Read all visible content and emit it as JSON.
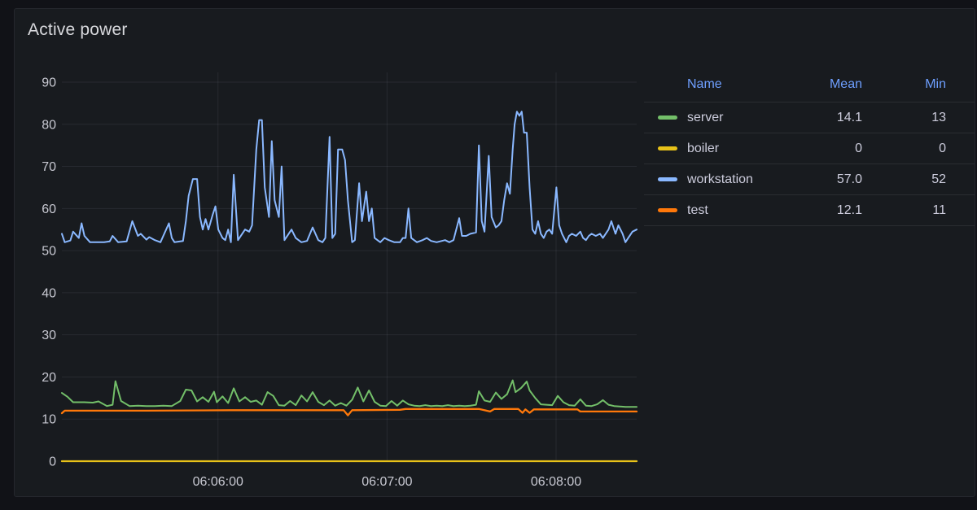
{
  "panel": {
    "title": "Active power"
  },
  "colors": {
    "page_background": "#111217",
    "panel_background": "#181B1F",
    "panel_border": "#25272D",
    "text": "#CCCCDC",
    "axis_text": "#C8C9D2",
    "header_link_blue": "#6E9FFF",
    "grid": "rgba(204,204,220,0.09)"
  },
  "legend": {
    "headers": [
      "Name",
      "Mean",
      "Min"
    ],
    "rows": [
      {
        "name": "server",
        "mean": "14.1",
        "min": "13",
        "color": "#73BF69"
      },
      {
        "name": "boiler",
        "mean": "0",
        "min": "0",
        "color": "#E8C219"
      },
      {
        "name": "workstation",
        "mean": "57.0",
        "min": "52",
        "color": "#8AB8FF"
      },
      {
        "name": "test",
        "mean": "12.1",
        "min": "11",
        "color": "#FF780A"
      }
    ]
  },
  "chart_data": {
    "type": "line",
    "title": "Active power",
    "xlabel": "",
    "ylabel": "",
    "grid": true,
    "legend_position": "right-table",
    "ylim": [
      0,
      93
    ],
    "y_ticks": [
      0,
      10,
      20,
      30,
      40,
      50,
      60,
      70,
      80,
      90
    ],
    "t_max_seconds": 204,
    "x_ticks": [
      {
        "t": 55.4,
        "label": "06:06:00"
      },
      {
        "t": 115.4,
        "label": "06:07:00"
      },
      {
        "t": 175.4,
        "label": "06:08:00"
      }
    ],
    "series": [
      {
        "name": "server",
        "color": "#73BF69",
        "width": 2,
        "points": [
          [
            0,
            16.2
          ],
          [
            2,
            15.3
          ],
          [
            4,
            14
          ],
          [
            8,
            14
          ],
          [
            11,
            13.9
          ],
          [
            13,
            14.2
          ],
          [
            16,
            13.1
          ],
          [
            18,
            13.4
          ],
          [
            19,
            19
          ],
          [
            21,
            14.3
          ],
          [
            24,
            13.1
          ],
          [
            27,
            13.2
          ],
          [
            30,
            13.1
          ],
          [
            33,
            13.1
          ],
          [
            36,
            13.2
          ],
          [
            39,
            13.1
          ],
          [
            42,
            14.3
          ],
          [
            44,
            17
          ],
          [
            46,
            16.8
          ],
          [
            48,
            14.2
          ],
          [
            50,
            15.2
          ],
          [
            52,
            14.1
          ],
          [
            54,
            16.5
          ],
          [
            55,
            14
          ],
          [
            57,
            15.4
          ],
          [
            59,
            13.8
          ],
          [
            61,
            17.3
          ],
          [
            63,
            14.2
          ],
          [
            65,
            15.2
          ],
          [
            67,
            14.1
          ],
          [
            69,
            14.4
          ],
          [
            71,
            13.4
          ],
          [
            73,
            16.4
          ],
          [
            75,
            15.5
          ],
          [
            77,
            13.3
          ],
          [
            79,
            13.2
          ],
          [
            81,
            14.3
          ],
          [
            83,
            13.3
          ],
          [
            85,
            15.6
          ],
          [
            87,
            14.2
          ],
          [
            89,
            16.4
          ],
          [
            91,
            14.1
          ],
          [
            93,
            13.3
          ],
          [
            95,
            14.4
          ],
          [
            97,
            13.2
          ],
          [
            99,
            13.8
          ],
          [
            101,
            13.2
          ],
          [
            103,
            14.6
          ],
          [
            105,
            17.5
          ],
          [
            107,
            14.2
          ],
          [
            109,
            16.8
          ],
          [
            111,
            14.1
          ],
          [
            113,
            13.2
          ],
          [
            115,
            13.1
          ],
          [
            117,
            14.3
          ],
          [
            119,
            13.2
          ],
          [
            121,
            14.4
          ],
          [
            123,
            13.5
          ],
          [
            125,
            13.2
          ],
          [
            127,
            13.1
          ],
          [
            129,
            13.3
          ],
          [
            131,
            13.1
          ],
          [
            133,
            13.2
          ],
          [
            135,
            13.1
          ],
          [
            137,
            13.3
          ],
          [
            139,
            13.1
          ],
          [
            141,
            13.2
          ],
          [
            143,
            13.1
          ],
          [
            145,
            13.2
          ],
          [
            147,
            13.4
          ],
          [
            148,
            16.6
          ],
          [
            150,
            14.4
          ],
          [
            152,
            14.1
          ],
          [
            154,
            16.3
          ],
          [
            156,
            14.8
          ],
          [
            158,
            15.9
          ],
          [
            160,
            19.2
          ],
          [
            161,
            16.4
          ],
          [
            163,
            17.4
          ],
          [
            165,
            18.9
          ],
          [
            166,
            16.8
          ],
          [
            168,
            15
          ],
          [
            170,
            13.5
          ],
          [
            172,
            13.4
          ],
          [
            174,
            13.3
          ],
          [
            176,
            15.5
          ],
          [
            178,
            14
          ],
          [
            180,
            13.3
          ],
          [
            182,
            13.2
          ],
          [
            184,
            14.7
          ],
          [
            186,
            13.2
          ],
          [
            188,
            13.1
          ],
          [
            190,
            13.5
          ],
          [
            192,
            14.5
          ],
          [
            194,
            13.4
          ],
          [
            196,
            13.1
          ],
          [
            198,
            13
          ],
          [
            200,
            12.9
          ],
          [
            202,
            12.9
          ],
          [
            204,
            12.9
          ]
        ]
      },
      {
        "name": "boiler",
        "color": "#E8C219",
        "width": 2.3,
        "points": [
          [
            0,
            0
          ],
          [
            204,
            0
          ]
        ]
      },
      {
        "name": "workstation",
        "color": "#8AB8FF",
        "width": 2,
        "points": [
          [
            0,
            54
          ],
          [
            1,
            52
          ],
          [
            3,
            52.4
          ],
          [
            4,
            54.5
          ],
          [
            6,
            53
          ],
          [
            7,
            56.5
          ],
          [
            8,
            53.5
          ],
          [
            10,
            52
          ],
          [
            15,
            52
          ],
          [
            17,
            52.2
          ],
          [
            18,
            53.5
          ],
          [
            20,
            52
          ],
          [
            23,
            52.2
          ],
          [
            25,
            57
          ],
          [
            27,
            53.5
          ],
          [
            28,
            54
          ],
          [
            30,
            52.6
          ],
          [
            31,
            53.2
          ],
          [
            33,
            52.5
          ],
          [
            35,
            52
          ],
          [
            38,
            56.5
          ],
          [
            39,
            53
          ],
          [
            40,
            52
          ],
          [
            43,
            52.3
          ],
          [
            44,
            57
          ],
          [
            45,
            63
          ],
          [
            46.5,
            67
          ],
          [
            48,
            67
          ],
          [
            49,
            58
          ],
          [
            50,
            55
          ],
          [
            51,
            57.5
          ],
          [
            52,
            55
          ],
          [
            53.5,
            58.5
          ],
          [
            54.5,
            60.5
          ],
          [
            55.5,
            55
          ],
          [
            57,
            53
          ],
          [
            58,
            52.5
          ],
          [
            59,
            55
          ],
          [
            60,
            52
          ],
          [
            61,
            68
          ],
          [
            62.5,
            52.5
          ],
          [
            64,
            54
          ],
          [
            65,
            55
          ],
          [
            66.5,
            54.5
          ],
          [
            67.5,
            56
          ],
          [
            69,
            74
          ],
          [
            70,
            81
          ],
          [
            71,
            81
          ],
          [
            72,
            65
          ],
          [
            73.5,
            58
          ],
          [
            74.5,
            76
          ],
          [
            75.5,
            62
          ],
          [
            77,
            58
          ],
          [
            78,
            70
          ],
          [
            79,
            52.5
          ],
          [
            80.5,
            54
          ],
          [
            81.5,
            55
          ],
          [
            83,
            53
          ],
          [
            85,
            52
          ],
          [
            87,
            52.3
          ],
          [
            89,
            55.5
          ],
          [
            91,
            52.5
          ],
          [
            92.5,
            52
          ],
          [
            93.5,
            53
          ],
          [
            95,
            77
          ],
          [
            96,
            53
          ],
          [
            97,
            54
          ],
          [
            98,
            74
          ],
          [
            99.5,
            74
          ],
          [
            100.5,
            71.5
          ],
          [
            101.5,
            62
          ],
          [
            103,
            52
          ],
          [
            104,
            52.5
          ],
          [
            105.5,
            66
          ],
          [
            106.5,
            57
          ],
          [
            108,
            64
          ],
          [
            109,
            57
          ],
          [
            110,
            60
          ],
          [
            111,
            53
          ],
          [
            113,
            52
          ],
          [
            114.5,
            53
          ],
          [
            116,
            52.5
          ],
          [
            118,
            52
          ],
          [
            120,
            52
          ],
          [
            121,
            53
          ],
          [
            122,
            53
          ],
          [
            123,
            60
          ],
          [
            124,
            53
          ],
          [
            126,
            52
          ],
          [
            128,
            52.5
          ],
          [
            129.5,
            53
          ],
          [
            131,
            52.3
          ],
          [
            133,
            52
          ],
          [
            136,
            52.5
          ],
          [
            137.5,
            52
          ],
          [
            139,
            52.5
          ],
          [
            141,
            57.7
          ],
          [
            142,
            53.5
          ],
          [
            143.5,
            53.5
          ],
          [
            145,
            54
          ],
          [
            147,
            54.3
          ],
          [
            148,
            75
          ],
          [
            149,
            57
          ],
          [
            150,
            54.5
          ],
          [
            151.5,
            72.5
          ],
          [
            152.5,
            58
          ],
          [
            154,
            55.5
          ],
          [
            155,
            56
          ],
          [
            156,
            57
          ],
          [
            157,
            62
          ],
          [
            158,
            66
          ],
          [
            159,
            63.5
          ],
          [
            160,
            74
          ],
          [
            160.7,
            80
          ],
          [
            161.5,
            83
          ],
          [
            162.4,
            82
          ],
          [
            163.2,
            83
          ],
          [
            164,
            78
          ],
          [
            165,
            78
          ],
          [
            166,
            65
          ],
          [
            167,
            55
          ],
          [
            168,
            54
          ],
          [
            169,
            57
          ],
          [
            170,
            54
          ],
          [
            171,
            53
          ],
          [
            172,
            54.5
          ],
          [
            173,
            55
          ],
          [
            174,
            54
          ],
          [
            175.5,
            65
          ],
          [
            176.5,
            56
          ],
          [
            177.5,
            54
          ],
          [
            179,
            52
          ],
          [
            180,
            53.5
          ],
          [
            181,
            54
          ],
          [
            182.5,
            53.5
          ],
          [
            184,
            54.5
          ],
          [
            185,
            53
          ],
          [
            186,
            52.5
          ],
          [
            187,
            53.5
          ],
          [
            188,
            54
          ],
          [
            189.5,
            53.5
          ],
          [
            191,
            54
          ],
          [
            192,
            53
          ],
          [
            193,
            54
          ],
          [
            194,
            55
          ],
          [
            195,
            57
          ],
          [
            196.5,
            54
          ],
          [
            197.5,
            56
          ],
          [
            199,
            54
          ],
          [
            200,
            52
          ],
          [
            201,
            53
          ],
          [
            202.5,
            54.5
          ],
          [
            204,
            55
          ]
        ]
      },
      {
        "name": "test",
        "color": "#FF780A",
        "width": 2.3,
        "points": [
          [
            0,
            11.4
          ],
          [
            1,
            12
          ],
          [
            30,
            12
          ],
          [
            60,
            12.1
          ],
          [
            90,
            12.1
          ],
          [
            100,
            12.1
          ],
          [
            101.5,
            10.9
          ],
          [
            103,
            12.1
          ],
          [
            120,
            12.2
          ],
          [
            122,
            12.4
          ],
          [
            140,
            12.4
          ],
          [
            148,
            12.4
          ],
          [
            152,
            11.8
          ],
          [
            153.5,
            12.4
          ],
          [
            160,
            12.4
          ],
          [
            162,
            12.4
          ],
          [
            163.5,
            11.5
          ],
          [
            164.5,
            12.3
          ],
          [
            166,
            11.5
          ],
          [
            167.5,
            12.3
          ],
          [
            172,
            12.3
          ],
          [
            183,
            12.3
          ],
          [
            184,
            11.8
          ],
          [
            195,
            11.8
          ],
          [
            204,
            11.8
          ]
        ]
      }
    ]
  }
}
